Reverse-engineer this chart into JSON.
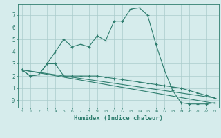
{
  "xlabel": "Humidex (Indice chaleur)",
  "ylabel": "",
  "bg_color": "#d6ecec",
  "grid_color": "#aacccc",
  "line_color": "#2e7d6e",
  "xlim": [
    -0.5,
    23.5
  ],
  "ylim": [
    -0.6,
    7.9
  ],
  "xticks": [
    0,
    1,
    2,
    3,
    4,
    5,
    6,
    7,
    8,
    9,
    10,
    11,
    12,
    13,
    14,
    15,
    16,
    17,
    18,
    19,
    20,
    21,
    22,
    23
  ],
  "yticks": [
    0,
    1,
    2,
    3,
    4,
    5,
    6,
    7
  ],
  "ytick_labels": [
    "-0",
    "1",
    "2",
    "3",
    "4",
    "5",
    "6",
    "7"
  ],
  "line1_x": [
    0,
    1,
    2,
    3,
    4,
    5,
    6,
    7,
    8,
    9,
    10,
    11,
    12,
    13,
    14,
    15,
    16,
    17,
    18,
    19,
    20,
    21,
    22,
    23
  ],
  "line1_y": [
    2.5,
    2.0,
    2.1,
    3.0,
    4.0,
    5.0,
    4.4,
    4.6,
    4.4,
    5.3,
    4.9,
    6.5,
    6.5,
    7.5,
    7.6,
    7.0,
    4.6,
    2.5,
    0.8,
    -0.2,
    -0.3,
    -0.3,
    -0.3,
    -0.2
  ],
  "line2_x": [
    0,
    1,
    2,
    3,
    4,
    5,
    6,
    7,
    8,
    9,
    10,
    11,
    12,
    13,
    14,
    15,
    16,
    17,
    18,
    19,
    20,
    21,
    22,
    23
  ],
  "line2_y": [
    2.5,
    2.0,
    2.1,
    3.0,
    3.0,
    2.0,
    2.0,
    2.0,
    2.0,
    2.0,
    1.9,
    1.8,
    1.7,
    1.6,
    1.5,
    1.4,
    1.3,
    1.2,
    1.1,
    1.0,
    0.8,
    0.6,
    0.4,
    0.2
  ],
  "line3_x": [
    0,
    23
  ],
  "line3_y": [
    2.5,
    0.2
  ],
  "line4_x": [
    0,
    23
  ],
  "line4_y": [
    2.5,
    -0.25
  ]
}
